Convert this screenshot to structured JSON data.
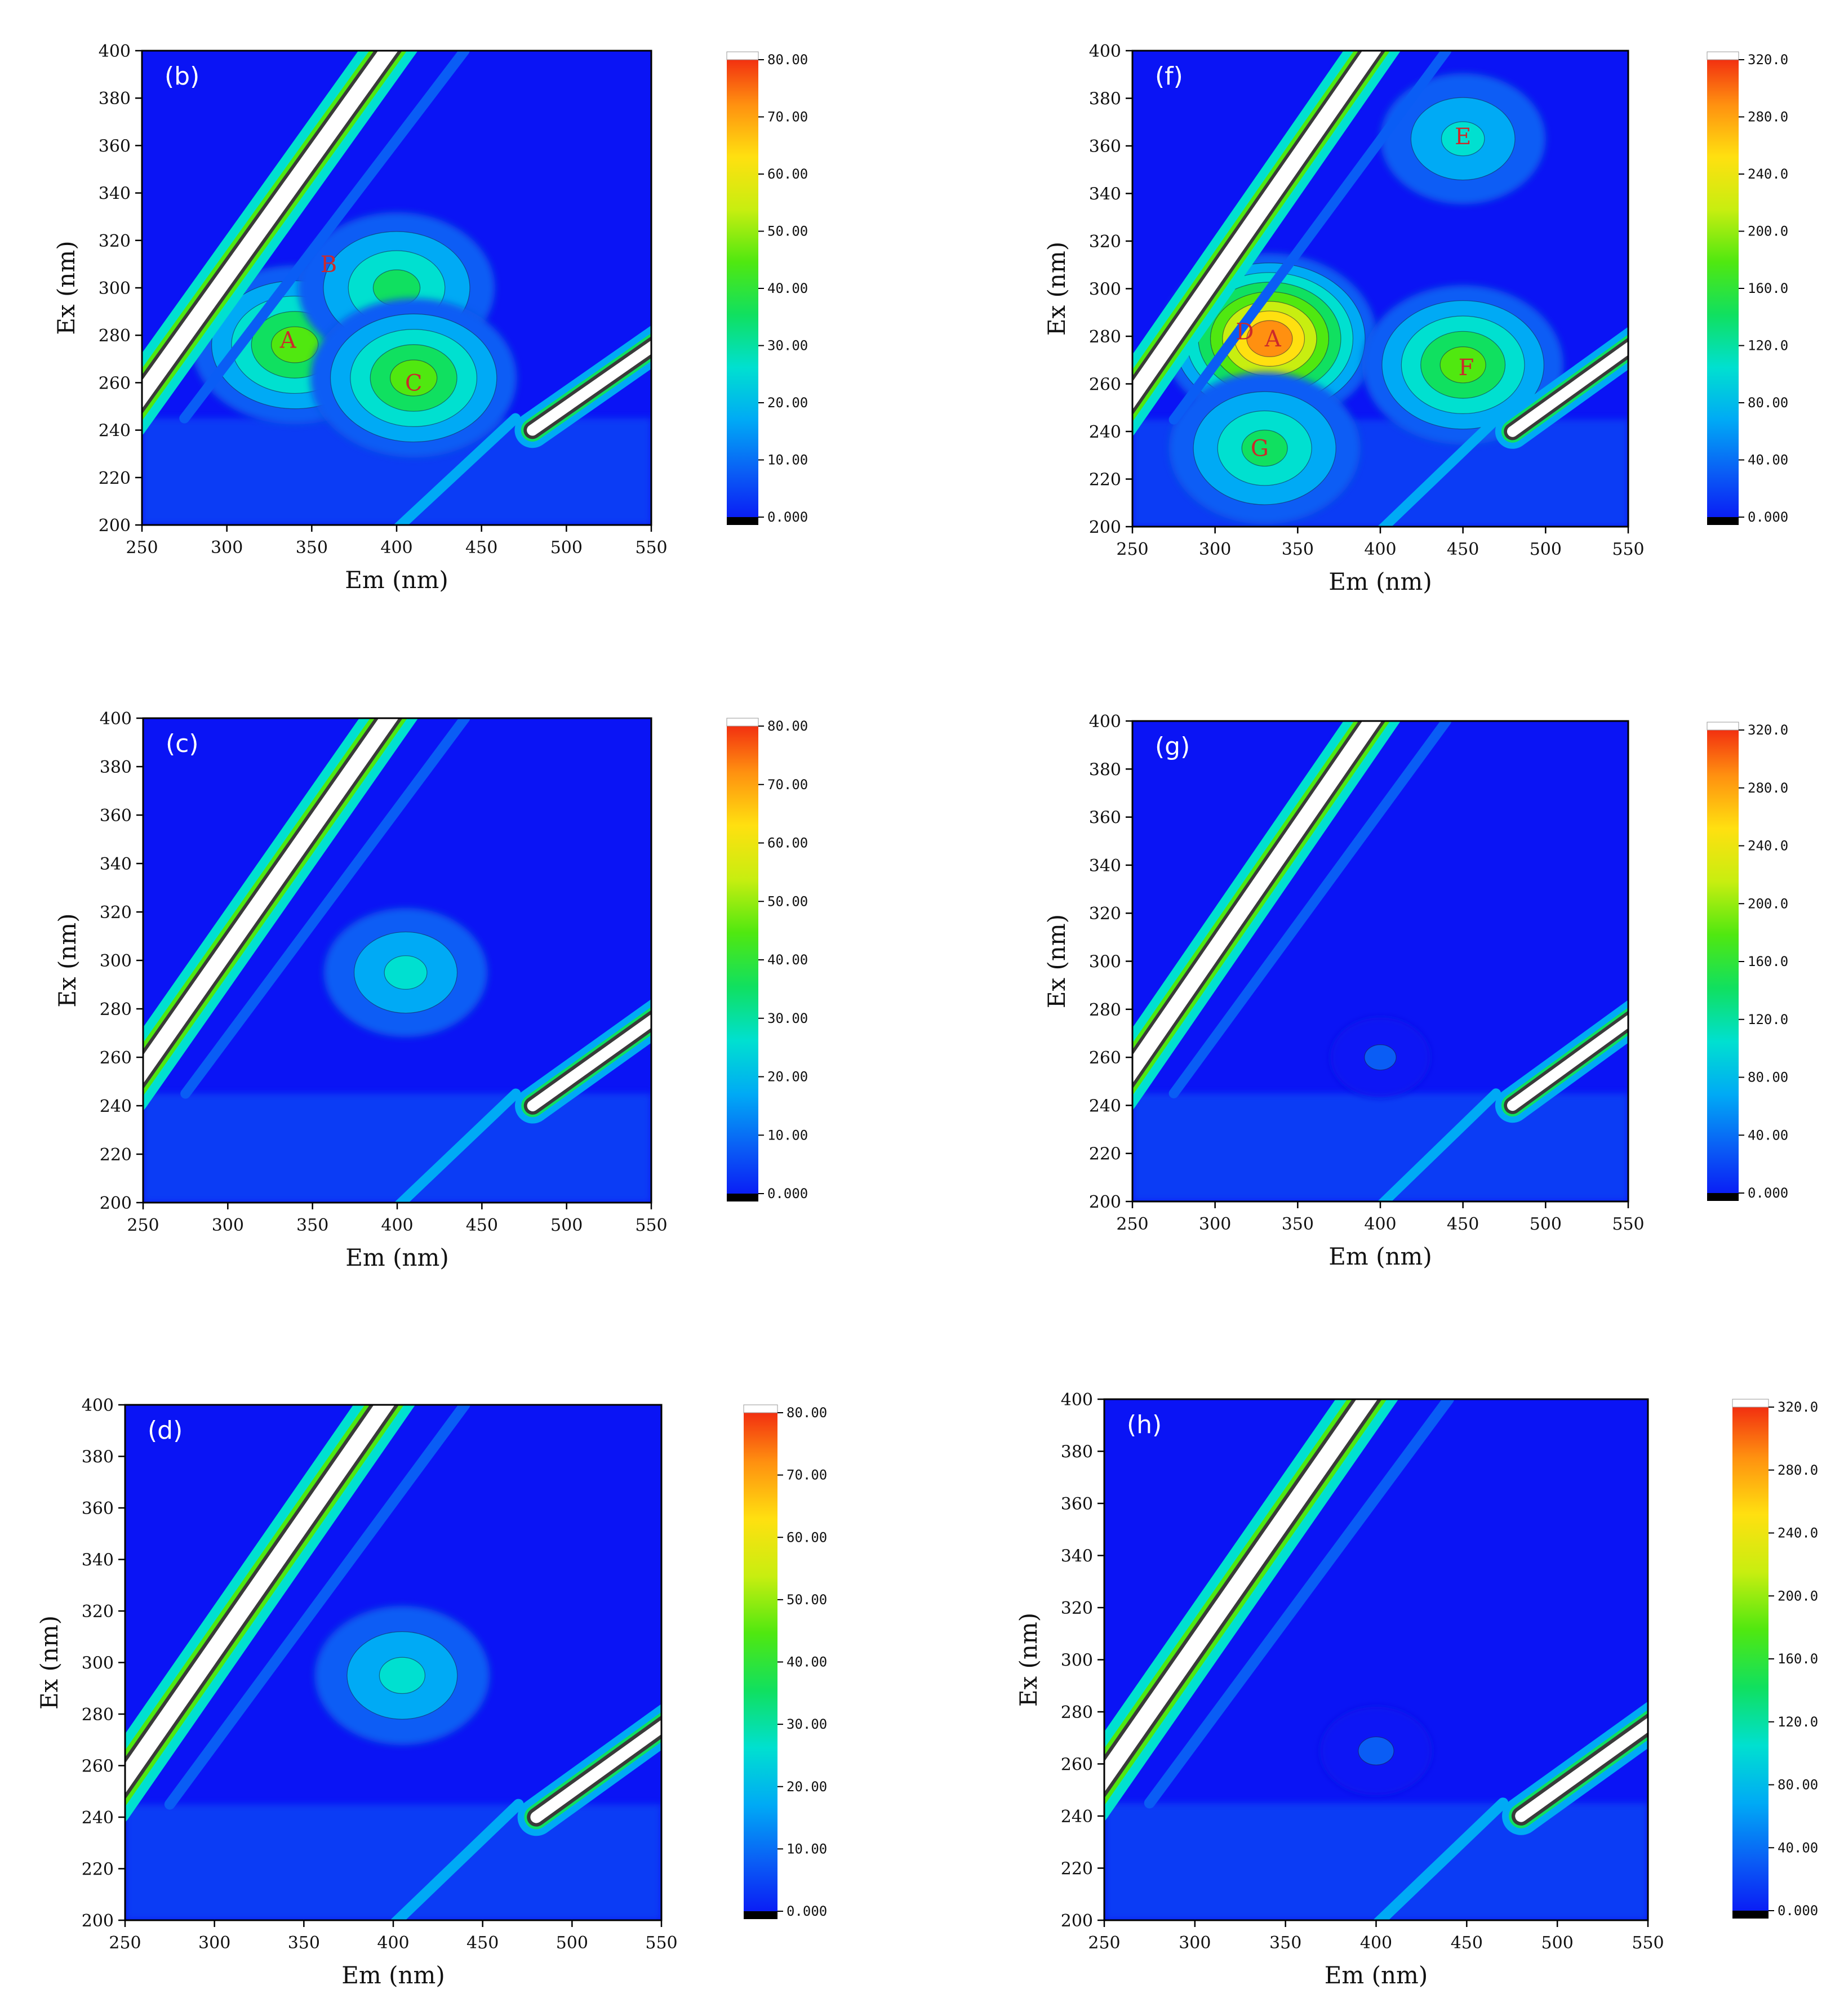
{
  "figure": {
    "background": "#ffffff"
  },
  "colormap": [
    "#0a14f5",
    "#0a5df5",
    "#00aaf5",
    "#00e0d0",
    "#10e060",
    "#50e810",
    "#c8ee10",
    "#ffe010",
    "#ff9010",
    "#f02010"
  ],
  "chart_data": [
    {
      "type": "heatmap",
      "panel_label": "(b)",
      "xlabel": "Em (nm)",
      "ylabel": "Ex (nm)",
      "xlim": [
        250,
        550
      ],
      "ylim": [
        200,
        400
      ],
      "xticks": [
        "250",
        "300",
        "350",
        "400",
        "450",
        "500",
        "550"
      ],
      "yticks": [
        "200",
        "220",
        "240",
        "260",
        "280",
        "300",
        "320",
        "340",
        "360",
        "380",
        "400"
      ],
      "colorbar": {
        "min": 0,
        "max": 80,
        "tick_labels": [
          "0.000",
          "10.00",
          "20.00",
          "30.00",
          "40.00",
          "50.00",
          "60.00",
          "70.00",
          "80.00"
        ]
      },
      "peak_labels": [
        {
          "text": "A",
          "em": 336,
          "ex": 278
        },
        {
          "text": "B",
          "em": 360,
          "ex": 310
        },
        {
          "text": "C",
          "em": 410,
          "ex": 260
        }
      ],
      "peaks": [
        {
          "em": 340,
          "ex": 276,
          "intensity": 42
        },
        {
          "em": 400,
          "ex": 300,
          "intensity": 38
        },
        {
          "em": 410,
          "ex": 262,
          "intensity": 40
        }
      ]
    },
    {
      "type": "heatmap",
      "panel_label": "(f)",
      "xlabel": "Em (nm)",
      "ylabel": "Ex (nm)",
      "xlim": [
        250,
        550
      ],
      "ylim": [
        200,
        400
      ],
      "xticks": [
        "250",
        "300",
        "350",
        "400",
        "450",
        "500",
        "550"
      ],
      "yticks": [
        "200",
        "220",
        "240",
        "260",
        "280",
        "300",
        "320",
        "340",
        "360",
        "380",
        "400"
      ],
      "colorbar": {
        "min": 0,
        "max": 320,
        "tick_labels": [
          "0.000",
          "40.00",
          "80.00",
          "120.0",
          "160.0",
          "200.0",
          "240.0",
          "280.0",
          "320.0"
        ]
      },
      "peak_labels": [
        {
          "text": "D",
          "em": 318,
          "ex": 282
        },
        {
          "text": "A",
          "em": 335,
          "ex": 279
        },
        {
          "text": "E",
          "em": 450,
          "ex": 364
        },
        {
          "text": "F",
          "em": 452,
          "ex": 267
        },
        {
          "text": "G",
          "em": 327,
          "ex": 233
        }
      ],
      "peaks": [
        {
          "em": 333,
          "ex": 279,
          "intensity": 300
        },
        {
          "em": 450,
          "ex": 363,
          "intensity": 110
        },
        {
          "em": 450,
          "ex": 268,
          "intensity": 170
        },
        {
          "em": 330,
          "ex": 233,
          "intensity": 150
        }
      ]
    },
    {
      "type": "heatmap",
      "panel_label": "(c)",
      "xlabel": "Em (nm)",
      "ylabel": "Ex (nm)",
      "xlim": [
        250,
        550
      ],
      "ylim": [
        200,
        400
      ],
      "xticks": [
        "250",
        "300",
        "350",
        "400",
        "450",
        "500",
        "550"
      ],
      "yticks": [
        "200",
        "220",
        "240",
        "260",
        "280",
        "300",
        "320",
        "340",
        "360",
        "380",
        "400"
      ],
      "colorbar": {
        "min": 0,
        "max": 80,
        "tick_labels": [
          "0.000",
          "10.00",
          "20.00",
          "30.00",
          "40.00",
          "50.00",
          "60.00",
          "70.00",
          "80.00"
        ]
      },
      "peak_labels": [],
      "peaks": [
        {
          "em": 405,
          "ex": 295,
          "intensity": 25
        }
      ]
    },
    {
      "type": "heatmap",
      "panel_label": "(g)",
      "xlabel": "Em (nm)",
      "ylabel": "Ex (nm)",
      "xlim": [
        250,
        550
      ],
      "ylim": [
        200,
        400
      ],
      "xticks": [
        "250",
        "300",
        "350",
        "400",
        "450",
        "500",
        "550"
      ],
      "yticks": [
        "200",
        "220",
        "240",
        "260",
        "280",
        "300",
        "320",
        "340",
        "360",
        "380",
        "400"
      ],
      "colorbar": {
        "min": 0,
        "max": 320,
        "tick_labels": [
          "0.000",
          "40.00",
          "80.00",
          "120.0",
          "160.0",
          "200.0",
          "240.0",
          "280.0",
          "320.0"
        ]
      },
      "peak_labels": [],
      "peaks": [
        {
          "em": 400,
          "ex": 260,
          "intensity": 30
        }
      ]
    },
    {
      "type": "heatmap",
      "panel_label": "(d)",
      "xlabel": "Em (nm)",
      "ylabel": "Ex (nm)",
      "xlim": [
        250,
        550
      ],
      "ylim": [
        200,
        400
      ],
      "xticks": [
        "250",
        "300",
        "350",
        "400",
        "450",
        "500",
        "550"
      ],
      "yticks": [
        "200",
        "220",
        "240",
        "260",
        "280",
        "300",
        "320",
        "340",
        "360",
        "380",
        "400"
      ],
      "colorbar": {
        "min": 0,
        "max": 80,
        "tick_labels": [
          "0.000",
          "10.00",
          "20.00",
          "30.00",
          "40.00",
          "50.00",
          "60.00",
          "70.00",
          "80.00"
        ]
      },
      "peak_labels": [],
      "peaks": [
        {
          "em": 405,
          "ex": 295,
          "intensity": 26
        }
      ]
    },
    {
      "type": "heatmap",
      "panel_label": "(h)",
      "xlabel": "Em (nm)",
      "ylabel": "Ex (nm)",
      "xlim": [
        250,
        550
      ],
      "ylim": [
        200,
        400
      ],
      "xticks": [
        "250",
        "300",
        "350",
        "400",
        "450",
        "500",
        "550"
      ],
      "yticks": [
        "200",
        "220",
        "240",
        "260",
        "280",
        "300",
        "320",
        "340",
        "360",
        "380",
        "400"
      ],
      "colorbar": {
        "min": 0,
        "max": 320,
        "tick_labels": [
          "0.000",
          "40.00",
          "80.00",
          "120.0",
          "160.0",
          "200.0",
          "240.0",
          "280.0",
          "320.0"
        ]
      },
      "peak_labels": [],
      "peaks": [
        {
          "em": 400,
          "ex": 265,
          "intensity": 35
        }
      ]
    }
  ]
}
